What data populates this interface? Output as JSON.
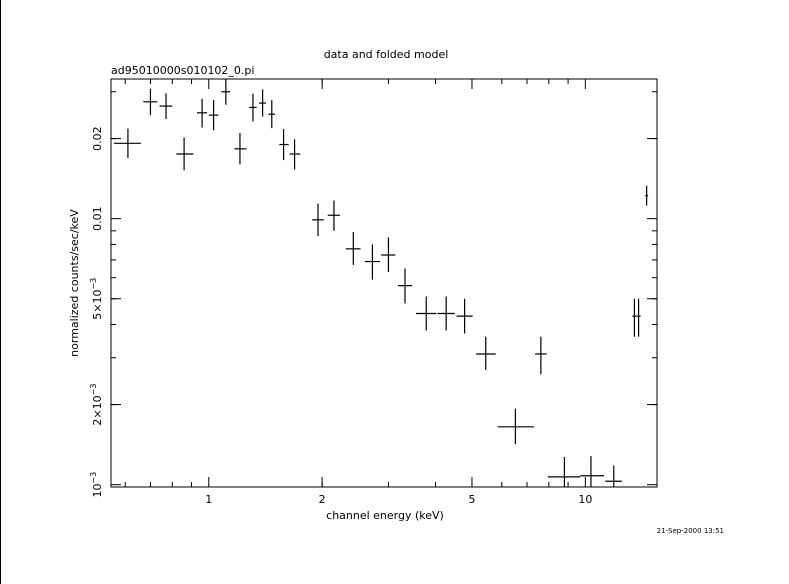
{
  "chart_data": {
    "type": "scatter",
    "title": "data and folded model",
    "subtitle": "ad95010000s010102_0.pi",
    "xlabel": "channel energy (keV)",
    "ylabel": "normalized counts/sec/keV",
    "timestamp": "21-Sep-2000 13:51",
    "x_scale": "log",
    "y_scale": "log",
    "xlim": [
      0.55,
      15.5
    ],
    "ylim": [
      0.00098,
      0.0335
    ],
    "x_ticks": [
      {
        "value": 1,
        "label": "1"
      },
      {
        "value": 2,
        "label": "2"
      },
      {
        "value": 5,
        "label": "5"
      },
      {
        "value": 10,
        "label": "10"
      }
    ],
    "y_ticks": [
      {
        "value": 0.001,
        "base": "10",
        "exp": "−3"
      },
      {
        "value": 0.002,
        "base": "2×10",
        "exp": "−3"
      },
      {
        "value": 0.005,
        "base": "5×10",
        "exp": "−3"
      },
      {
        "value": 0.01,
        "label": "0.01"
      },
      {
        "value": 0.02,
        "label": "0.02"
      }
    ],
    "grid": false,
    "legend": "none",
    "color": "#000000",
    "series": [
      {
        "points": [
          {
            "x": 0.61,
            "xlo": 0.56,
            "xhi": 0.66,
            "y": 0.0192,
            "ylo": 0.0169,
            "yhi": 0.0218
          },
          {
            "x": 0.7,
            "xlo": 0.67,
            "xhi": 0.73,
            "y": 0.0275,
            "ylo": 0.0245,
            "yhi": 0.0308
          },
          {
            "x": 0.77,
            "xlo": 0.74,
            "xhi": 0.8,
            "y": 0.0265,
            "ylo": 0.0237,
            "yhi": 0.0296
          },
          {
            "x": 0.86,
            "xlo": 0.82,
            "xhi": 0.91,
            "y": 0.0175,
            "ylo": 0.0152,
            "yhi": 0.0202
          },
          {
            "x": 0.96,
            "xlo": 0.93,
            "xhi": 0.99,
            "y": 0.025,
            "ylo": 0.022,
            "yhi": 0.0282
          },
          {
            "x": 1.03,
            "xlo": 1.0,
            "xhi": 1.06,
            "y": 0.0245,
            "ylo": 0.0215,
            "yhi": 0.0279
          },
          {
            "x": 1.11,
            "xlo": 1.08,
            "xhi": 1.14,
            "y": 0.03,
            "ylo": 0.0268,
            "yhi": 0.0335
          },
          {
            "x": 1.21,
            "xlo": 1.17,
            "xhi": 1.26,
            "y": 0.0183,
            "ylo": 0.016,
            "yhi": 0.021
          },
          {
            "x": 1.31,
            "xlo": 1.28,
            "xhi": 1.34,
            "y": 0.0262,
            "ylo": 0.0232,
            "yhi": 0.0295
          },
          {
            "x": 1.39,
            "xlo": 1.36,
            "xhi": 1.42,
            "y": 0.0272,
            "ylo": 0.0242,
            "yhi": 0.0306
          },
          {
            "x": 1.47,
            "xlo": 1.44,
            "xhi": 1.5,
            "y": 0.0247,
            "ylo": 0.0219,
            "yhi": 0.0279
          },
          {
            "x": 1.58,
            "xlo": 1.54,
            "xhi": 1.63,
            "y": 0.019,
            "ylo": 0.0166,
            "yhi": 0.0217
          },
          {
            "x": 1.69,
            "xlo": 1.64,
            "xhi": 1.75,
            "y": 0.0175,
            "ylo": 0.0153,
            "yhi": 0.0199
          },
          {
            "x": 1.95,
            "xlo": 1.88,
            "xhi": 2.02,
            "y": 0.0099,
            "ylo": 0.0086,
            "yhi": 0.0114
          },
          {
            "x": 2.15,
            "xlo": 2.07,
            "xhi": 2.23,
            "y": 0.0103,
            "ylo": 0.009,
            "yhi": 0.0117
          },
          {
            "x": 2.42,
            "xlo": 2.31,
            "xhi": 2.53,
            "y": 0.0077,
            "ylo": 0.0067,
            "yhi": 0.0089
          },
          {
            "x": 2.72,
            "xlo": 2.6,
            "xhi": 2.85,
            "y": 0.0069,
            "ylo": 0.0059,
            "yhi": 0.008
          },
          {
            "x": 3.0,
            "xlo": 2.87,
            "xhi": 3.13,
            "y": 0.0073,
            "ylo": 0.0063,
            "yhi": 0.0085
          },
          {
            "x": 3.32,
            "xlo": 3.18,
            "xhi": 3.47,
            "y": 0.0056,
            "ylo": 0.0048,
            "yhi": 0.0065
          },
          {
            "x": 3.78,
            "xlo": 3.55,
            "xhi": 4.02,
            "y": 0.0044,
            "ylo": 0.0038,
            "yhi": 0.0051
          },
          {
            "x": 4.27,
            "xlo": 4.05,
            "xhi": 4.5,
            "y": 0.0044,
            "ylo": 0.0038,
            "yhi": 0.0051
          },
          {
            "x": 4.78,
            "xlo": 4.55,
            "xhi": 5.02,
            "y": 0.0043,
            "ylo": 0.0037,
            "yhi": 0.005
          },
          {
            "x": 5.44,
            "xlo": 5.13,
            "xhi": 5.78,
            "y": 0.0031,
            "ylo": 0.0027,
            "yhi": 0.0036
          },
          {
            "x": 6.52,
            "xlo": 5.85,
            "xhi": 7.3,
            "y": 0.00165,
            "ylo": 0.00142,
            "yhi": 0.00193
          },
          {
            "x": 7.62,
            "xlo": 7.35,
            "xhi": 7.9,
            "y": 0.0031,
            "ylo": 0.0026,
            "yhi": 0.0036
          },
          {
            "x": 8.8,
            "xlo": 7.95,
            "xhi": 9.7,
            "y": 0.00107,
            "ylo": 0.00098,
            "yhi": 0.00127
          },
          {
            "x": 10.35,
            "xlo": 9.7,
            "xhi": 11.2,
            "y": 0.00108,
            "ylo": 0.00098,
            "yhi": 0.00128
          },
          {
            "x": 11.9,
            "xlo": 11.3,
            "xhi": 12.5,
            "y": 0.00103,
            "ylo": 0.00098,
            "yhi": 0.00118
          },
          {
            "x": 13.5,
            "xlo": 13.33,
            "xhi": 13.67,
            "y": 0.0043,
            "ylo": 0.0036,
            "yhi": 0.005
          },
          {
            "x": 13.85,
            "xlo": 13.68,
            "xhi": 14.02,
            "y": 0.0043,
            "ylo": 0.0036,
            "yhi": 0.005
          },
          {
            "x": 14.55,
            "xlo": 14.42,
            "xhi": 14.68,
            "y": 0.0122,
            "ylo": 0.0112,
            "yhi": 0.0133
          }
        ]
      }
    ]
  }
}
